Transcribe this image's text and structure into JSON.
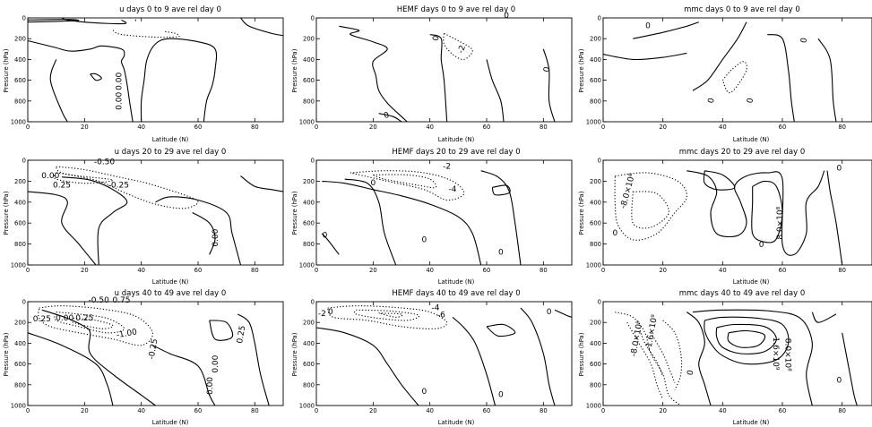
{
  "figure": {
    "panels": [
      {
        "title": "u days 0 to 9 ave rel day 0",
        "xlabel": "Latitude (N)",
        "ylabel": "Pressure (hPa)",
        "contour_labels": [
          {
            "text": "0.00",
            "lat": 33,
            "p": 610,
            "rot": -90
          },
          {
            "text": "0.00",
            "lat": 33,
            "p": 800,
            "rot": -90
          }
        ]
      },
      {
        "title": "HEMF days 0 to 9 ave rel day 0",
        "xlabel": "Latitude (N)",
        "ylabel": "Pressure (hPa)",
        "contour_labels": [
          {
            "text": "0",
            "lat": 67,
            "p": 0,
            "rot": 0
          },
          {
            "text": "0",
            "lat": 43,
            "p": 200,
            "rot": -80
          },
          {
            "text": "-2",
            "lat": 52,
            "p": 310,
            "rot": -70
          },
          {
            "text": "0",
            "lat": 82,
            "p": 500,
            "rot": -80
          },
          {
            "text": "0",
            "lat": 25,
            "p": 960,
            "rot": -20
          }
        ]
      },
      {
        "title": "mmc days 0 to 9 ave rel day 0",
        "xlabel": "Latitude (N)",
        "ylabel": "Pressure (hPa)",
        "contour_labels": [
          {
            "text": "0",
            "lat": 15,
            "p": 100,
            "rot": 0
          },
          {
            "text": "0",
            "lat": 68,
            "p": 220,
            "rot": -80
          },
          {
            "text": "0",
            "lat": 37,
            "p": 800,
            "rot": -80
          },
          {
            "text": "0",
            "lat": 50,
            "p": 800,
            "rot": -80
          }
        ]
      },
      {
        "title": "u days 20 to 29 ave rel day 0",
        "xlabel": "Latitude (N)",
        "ylabel": "Pressure (hPa)",
        "contour_labels": [
          {
            "text": "-0.50",
            "lat": 27,
            "p": 40,
            "rot": 0
          },
          {
            "text": "0.00",
            "lat": 8,
            "p": 170,
            "rot": 0
          },
          {
            "text": "0.25",
            "lat": 12,
            "p": 260,
            "rot": 0
          },
          {
            "text": "-0.25",
            "lat": 32,
            "p": 260,
            "rot": 0
          },
          {
            "text": "0.00",
            "lat": 67,
            "p": 740,
            "rot": -90
          }
        ]
      },
      {
        "title": "HEMF days 20 to 29 ave rel day 0",
        "xlabel": "Latitude (N)",
        "ylabel": "Pressure (hPa)",
        "contour_labels": [
          {
            "text": "-2",
            "lat": 46,
            "p": 80,
            "rot": 0
          },
          {
            "text": "-4",
            "lat": 48,
            "p": 300,
            "rot": 0
          },
          {
            "text": "0",
            "lat": 20,
            "p": 240,
            "rot": 0
          },
          {
            "text": "0",
            "lat": 3,
            "p": 740,
            "rot": 0
          },
          {
            "text": "0",
            "lat": 38,
            "p": 780,
            "rot": 0
          },
          {
            "text": "0",
            "lat": 65,
            "p": 900,
            "rot": 0
          }
        ]
      },
      {
        "title": "mmc days 20 to 29 ave rel day 0",
        "xlabel": "Latitude (N)",
        "ylabel": "Pressure (hPa)",
        "contour_labels": [
          {
            "text": "-8.0×10⁸",
            "lat": 9,
            "p": 300,
            "rot": -75
          },
          {
            "text": "8.0×10⁸",
            "lat": 60,
            "p": 600,
            "rot": -90
          },
          {
            "text": "0",
            "lat": 79,
            "p": 100,
            "rot": 0
          },
          {
            "text": "0",
            "lat": 53,
            "p": 830,
            "rot": 0
          },
          {
            "text": "0",
            "lat": 4,
            "p": 720,
            "rot": 0
          }
        ]
      },
      {
        "title": "u days 40 to 49 ave rel day 0",
        "xlabel": "Latitude (N)",
        "ylabel": "Pressure (hPa)",
        "contour_labels": [
          {
            "text": "-0.50",
            "lat": 25,
            "p": 10,
            "rot": 0
          },
          {
            "text": "0.75",
            "lat": 33,
            "p": 10,
            "rot": 0
          },
          {
            "text": "0.25",
            "lat": 5,
            "p": 190,
            "rot": 0
          },
          {
            "text": "0.00",
            "lat": 13,
            "p": 180,
            "rot": 0
          },
          {
            "text": "0.25",
            "lat": 20,
            "p": 180,
            "rot": 0
          },
          {
            "text": "-1.00",
            "lat": 35,
            "p": 330,
            "rot": -10
          },
          {
            "text": "-0.25",
            "lat": 45,
            "p": 460,
            "rot": -80
          },
          {
            "text": "0.25",
            "lat": 76,
            "p": 320,
            "rot": -80
          },
          {
            "text": "0.00",
            "lat": 67,
            "p": 600,
            "rot": -90
          },
          {
            "text": "0.00",
            "lat": 65,
            "p": 810,
            "rot": -90
          }
        ]
      },
      {
        "title": "HEMF days 40 to 49 ave rel day 0",
        "xlabel": "Latitude (N)",
        "ylabel": "Pressure (hPa)",
        "contour_labels": [
          {
            "text": "-2",
            "lat": 2,
            "p": 140,
            "rot": 0
          },
          {
            "text": "-4",
            "lat": 42,
            "p": 80,
            "rot": 0
          },
          {
            "text": "-6",
            "lat": 44,
            "p": 150,
            "rot": 0
          },
          {
            "text": "0",
            "lat": 82,
            "p": 120,
            "rot": 0
          },
          {
            "text": "0",
            "lat": 5,
            "p": 120,
            "rot": 0
          },
          {
            "text": "0",
            "lat": 38,
            "p": 890,
            "rot": 0
          },
          {
            "text": "0",
            "lat": 65,
            "p": 920,
            "rot": 0
          }
        ]
      },
      {
        "title": "mmc days 40 to 49 ave rel day 0",
        "xlabel": "Latitude (N)",
        "ylabel": "Pressure (hPa)",
        "contour_labels": [
          {
            "text": "-8.0×10⁸",
            "lat": 12,
            "p": 360,
            "rot": -80
          },
          {
            "text": "-1.6×10⁹",
            "lat": 17,
            "p": 300,
            "rot": -80
          },
          {
            "text": "8.0×10⁸",
            "lat": 61,
            "p": 510,
            "rot": 90
          },
          {
            "text": "1.6×10⁹",
            "lat": 57,
            "p": 500,
            "rot": 90
          },
          {
            "text": "0",
            "lat": 30,
            "p": 690,
            "rot": -75
          },
          {
            "text": "0",
            "lat": 79,
            "p": 780,
            "rot": 0
          }
        ]
      }
    ]
  },
  "chart_data": {
    "type": "contour",
    "layout": "3x3",
    "x_ticks": [
      0,
      20,
      40,
      60,
      80
    ],
    "y_ticks": [
      0,
      200,
      400,
      600,
      800,
      1000
    ],
    "xlim": [
      0,
      90
    ],
    "ylim": [
      0,
      1000
    ],
    "y_inverted": true,
    "grid": false,
    "contour_style": {
      "positive": "solid",
      "negative": "dotted"
    },
    "contours": [
      {
        "style": "solid",
        "points": [
          [
            0,
            40
          ],
          [
            6,
            36
          ],
          [
            14,
            30
          ],
          [
            18,
            25
          ],
          [
            14,
            15
          ],
          [
            0,
            20
          ]
        ]
      },
      {
        "style": "dotted",
        "points": [
          [
            30,
            120
          ],
          [
            33,
            160
          ],
          [
            45,
            185
          ],
          [
            53,
            180
          ],
          [
            52,
            150
          ],
          [
            48,
            130
          ]
        ]
      },
      {
        "style": "solid",
        "points": [
          [
            12,
            0
          ],
          [
            14,
            20
          ],
          [
            22,
            45
          ],
          [
            34,
            55
          ],
          [
            33,
            20
          ]
        ]
      },
      {
        "style": "solid",
        "points": [
          [
            38,
            15
          ],
          [
            38,
            30
          ]
        ]
      },
      {
        "style": "solid",
        "points": [
          [
            0,
            220
          ],
          [
            9,
            280
          ],
          [
            15,
            320
          ],
          [
            22,
            300
          ],
          [
            26,
            270
          ],
          [
            33,
            300
          ],
          [
            34,
            360
          ],
          [
            33,
            420
          ],
          [
            34,
            500
          ],
          [
            35,
            640
          ],
          [
            36,
            830
          ],
          [
            37,
            1000
          ]
        ]
      },
      {
        "style": "solid",
        "points": [
          [
            22,
            540
          ],
          [
            24,
            600
          ],
          [
            26,
            580
          ],
          [
            24,
            540
          ],
          [
            22,
            540
          ]
        ]
      },
      {
        "style": "solid",
        "points": [
          [
            10,
            400
          ],
          [
            8,
            600
          ],
          [
            12,
            900
          ],
          [
            14,
            1000
          ]
        ]
      },
      {
        "style": "solid",
        "points": [
          [
            40,
            1000
          ],
          [
            40,
            800
          ],
          [
            41,
            600
          ],
          [
            42,
            400
          ],
          [
            45,
            250
          ],
          [
            50,
            200
          ],
          [
            60,
            230
          ],
          [
            66,
            300
          ],
          [
            66,
            500
          ],
          [
            65,
            650
          ],
          [
            63,
            800
          ],
          [
            62,
            1000
          ]
        ]
      },
      {
        "style": "solid",
        "points": [
          [
            75,
            0
          ],
          [
            78,
            80
          ],
          [
            86,
            150
          ],
          [
            90,
            170
          ]
        ]
      }
    ]
  }
}
